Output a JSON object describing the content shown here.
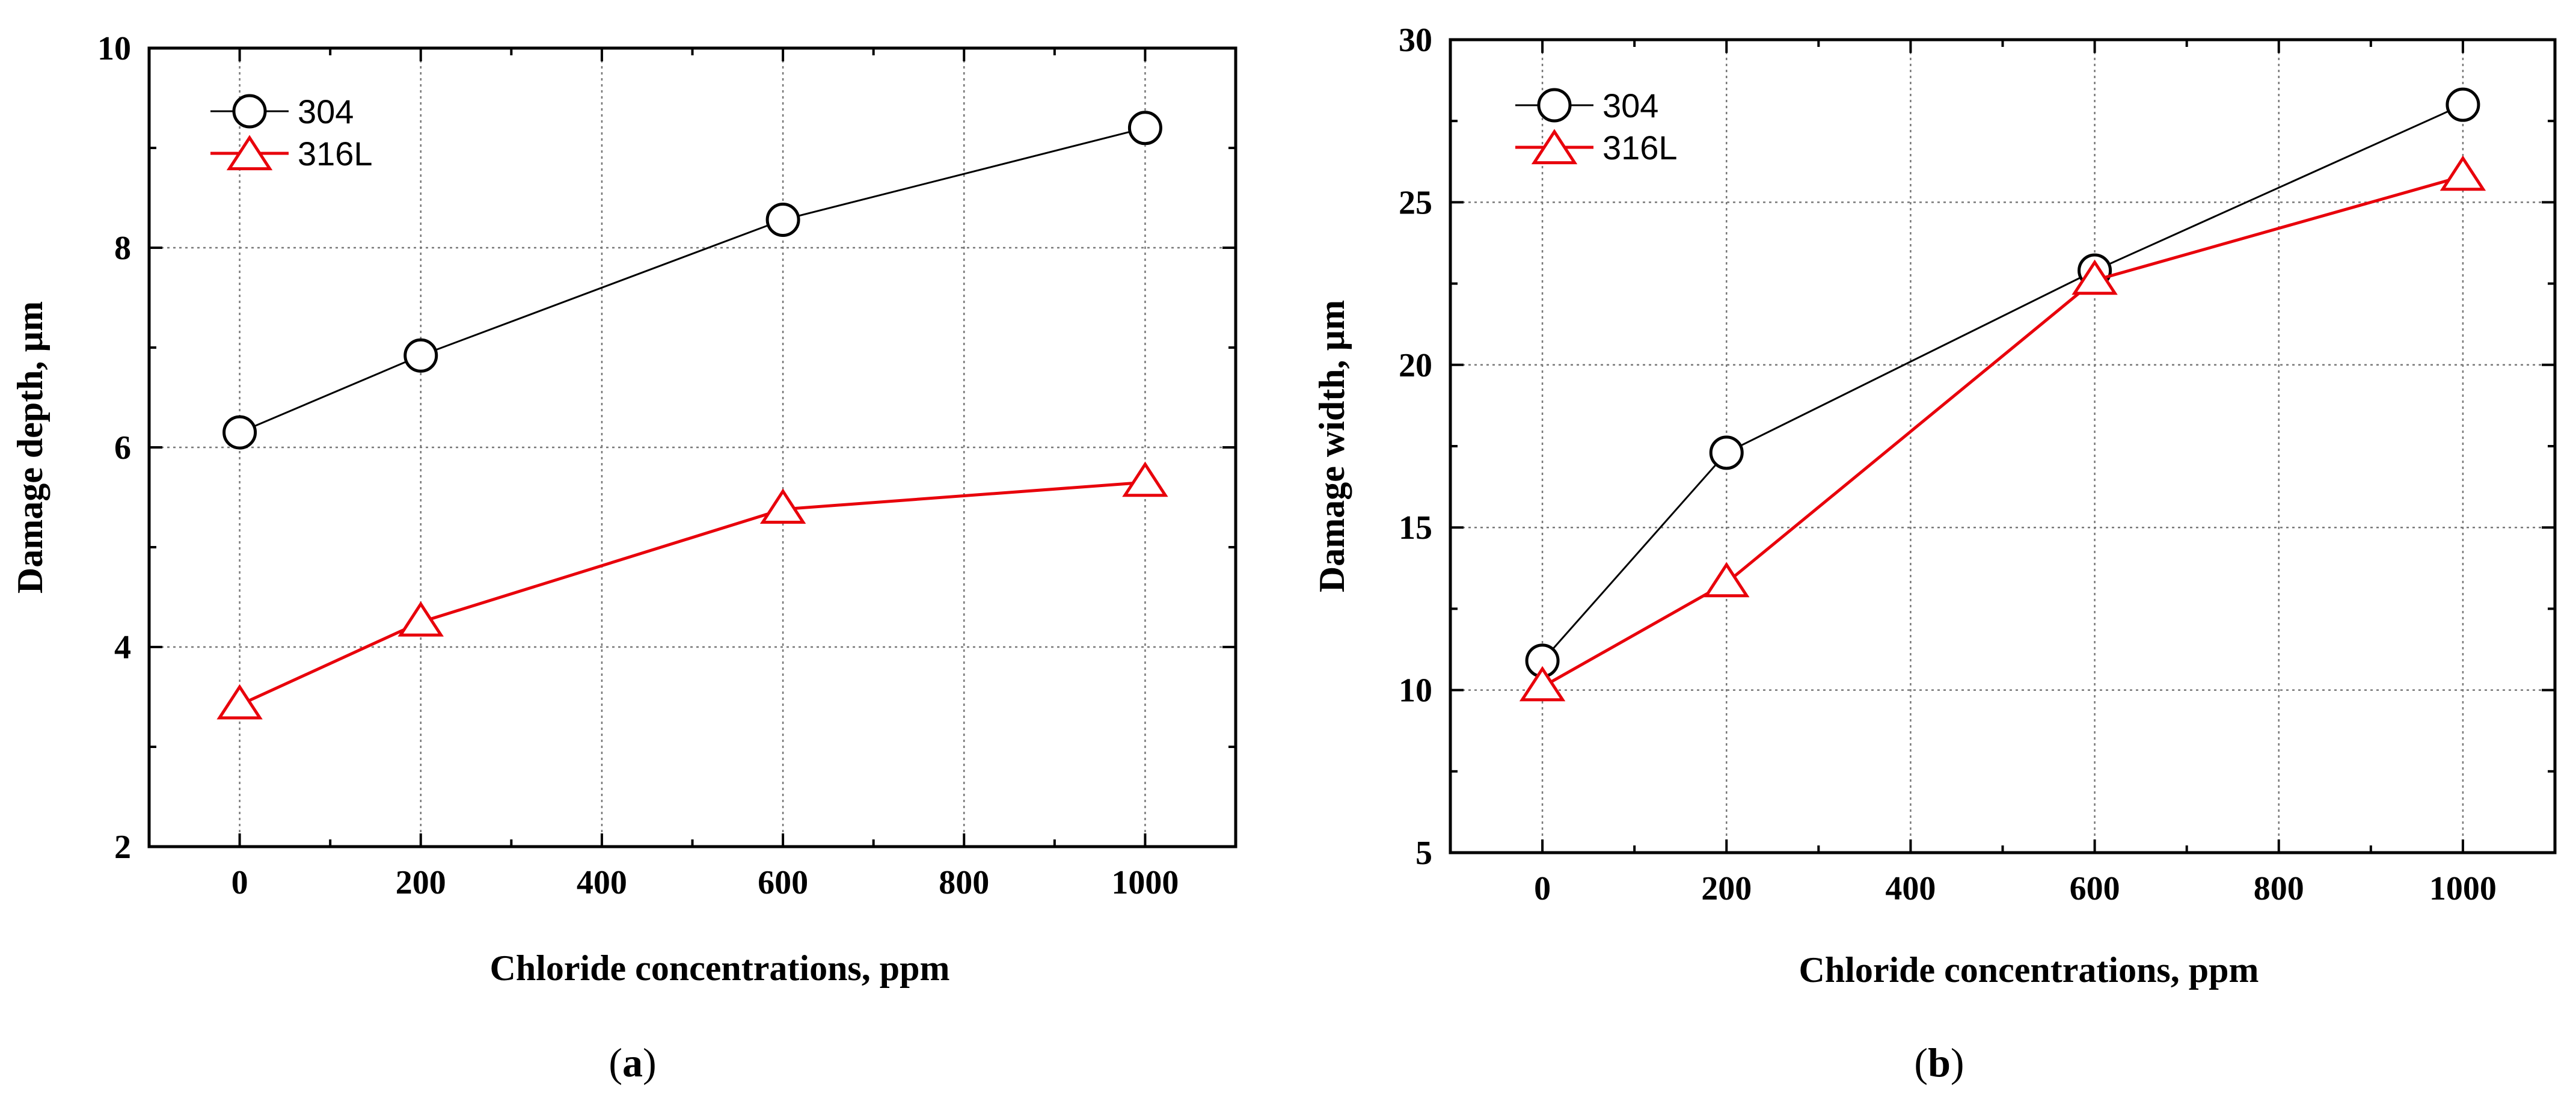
{
  "chart_data": [
    {
      "type": "line",
      "panel_label": "a",
      "xlabel": "Chloride concentrations, ppm",
      "ylabel": "Damage depth, µm",
      "xlim": [
        -100,
        1100
      ],
      "ylim": [
        2,
        10
      ],
      "xticks": [
        0,
        200,
        400,
        600,
        800,
        1000
      ],
      "yticks": [
        2,
        4,
        6,
        8,
        10
      ],
      "grid": true,
      "legend_position": "top-left",
      "series": [
        {
          "name": "304",
          "color": "#000000",
          "marker": "circle",
          "x": [
            0,
            200,
            600,
            1000
          ],
          "values": [
            6.15,
            6.92,
            8.28,
            9.2
          ]
        },
        {
          "name": "316L",
          "color": "#e8000b",
          "marker": "triangle",
          "x": [
            0,
            200,
            600,
            1000
          ],
          "values": [
            3.42,
            4.25,
            5.38,
            5.65
          ]
        }
      ]
    },
    {
      "type": "line",
      "panel_label": "b",
      "xlabel": "Chloride concentrations, ppm",
      "ylabel": "Damage width, µm",
      "xlim": [
        -100,
        1100
      ],
      "ylim": [
        5,
        30
      ],
      "xticks": [
        0,
        200,
        400,
        600,
        800,
        1000
      ],
      "yticks": [
        5,
        10,
        15,
        20,
        25,
        30
      ],
      "grid": true,
      "legend_position": "top-left",
      "series": [
        {
          "name": "304",
          "color": "#000000",
          "marker": "circle",
          "x": [
            0,
            200,
            600,
            1000
          ],
          "values": [
            10.9,
            17.3,
            22.9,
            28.0
          ]
        },
        {
          "name": "316L",
          "color": "#e8000b",
          "marker": "triangle",
          "x": [
            0,
            200,
            600,
            1000
          ],
          "values": [
            10.1,
            13.3,
            22.6,
            25.8
          ]
        }
      ]
    }
  ]
}
